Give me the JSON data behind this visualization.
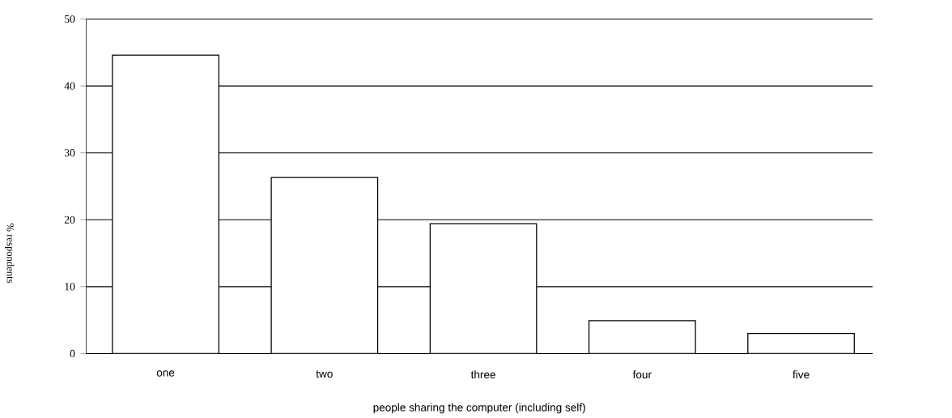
{
  "chart_data": {
    "type": "bar",
    "xlabel": "people sharing the computer (including self)",
    "ylabel": "% respondents",
    "categories": [
      "one",
      "two",
      "three",
      "four",
      "five"
    ],
    "values": [
      44.6,
      26.3,
      19.4,
      4.9,
      3.0
    ],
    "color": "#ffffff",
    "ylim": [
      0,
      50
    ],
    "yticks": [
      0,
      10,
      20,
      30,
      40,
      50
    ],
    "grid": "y"
  }
}
